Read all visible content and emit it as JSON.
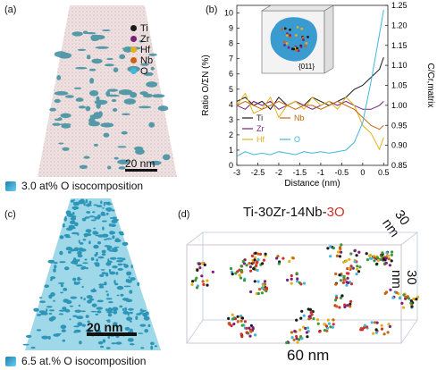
{
  "panels": {
    "a": {
      "label": "(a)",
      "legend": [
        {
          "symbol": "Ti",
          "color": "#1a1a1a"
        },
        {
          "symbol": "Zr",
          "color": "#7a1f7a"
        },
        {
          "symbol": "Hf",
          "color": "#e3b21b"
        },
        {
          "symbol": "Nb",
          "color": "#c8640f"
        },
        {
          "symbol": "O",
          "color": "#3fb7de"
        }
      ],
      "scalebar": "20 nm",
      "iso_caption": "3.0 at% O isocomposition"
    },
    "b": {
      "label": "(b)",
      "inset_label": "{011}"
    },
    "c": {
      "label": "(c)",
      "scalebar": "20 nm",
      "iso_caption": "6.5 at.% O isocomposition"
    },
    "d": {
      "label": "(d)",
      "title_prefix": "Ti-30Zr-14Nb-",
      "title_highlight": "3O",
      "dim_top": "30 nm",
      "dim_right": "30 nm",
      "dim_bottom": "60 nm"
    }
  },
  "chart_data": {
    "type": "line",
    "xlabel": "Distance (nm)",
    "ylabel_left": "Ratio O/ΣN (%)",
    "ylabel_right": "C/Cr,matrix",
    "xlim": [
      -3,
      0.6
    ],
    "ylim_left": [
      0,
      10.5
    ],
    "ylim_right": [
      0.85,
      1.25
    ],
    "xticks": [
      "-3",
      "-2.5",
      "-2",
      "-1.5",
      "-1",
      "-0.5",
      "0",
      "0.5"
    ],
    "yticks_left": [
      "0",
      "1",
      "2",
      "3",
      "4",
      "5",
      "6",
      "7",
      "8",
      "9",
      "10"
    ],
    "yticks_right": [
      "0.85",
      "0.90",
      "0.95",
      "1.00",
      "1.05",
      "1.10",
      "1.15",
      "1.20",
      "1.25"
    ],
    "x": [
      -3.0,
      -2.8,
      -2.6,
      -2.4,
      -2.2,
      -2.0,
      -1.8,
      -1.6,
      -1.4,
      -1.2,
      -1.0,
      -0.8,
      -0.6,
      -0.4,
      -0.2,
      0.0,
      0.2,
      0.4,
      0.5
    ],
    "series": [
      {
        "name": "Ti",
        "color": "#1a1a1a",
        "axis": "right",
        "values": [
          1.01,
          1.02,
          1.0,
          1.01,
          0.99,
          1.02,
          1.0,
          1.01,
          1.0,
          1.02,
          1.01,
          1.0,
          1.01,
          1.02,
          1.04,
          1.05,
          1.07,
          1.09,
          1.12
        ]
      },
      {
        "name": "Zr",
        "color": "#7a1f7a",
        "axis": "right",
        "values": [
          1.0,
          0.99,
          1.01,
          1.0,
          1.01,
          0.99,
          1.0,
          1.01,
          1.0,
          0.99,
          1.0,
          1.01,
          1.0,
          1.01,
          1.0,
          0.99,
          0.99,
          1.0,
          1.01
        ]
      },
      {
        "name": "Hf",
        "color": "#e3b21b",
        "axis": "right",
        "values": [
          1.0,
          1.03,
          0.98,
          0.99,
          1.02,
          0.97,
          1.0,
          1.01,
          0.99,
          1.02,
          1.0,
          1.01,
          0.99,
          1.02,
          1.0,
          0.95,
          0.93,
          0.89,
          0.92
        ]
      },
      {
        "name": "Nb",
        "color": "#c8640f",
        "axis": "right",
        "values": [
          1.0,
          1.01,
          1.0,
          0.99,
          1.0,
          1.01,
          1.0,
          0.99,
          1.0,
          1.0,
          0.99,
          1.0,
          1.01,
          1.0,
          0.99,
          0.97,
          0.95,
          0.94,
          0.95
        ]
      },
      {
        "name": "O",
        "color": "#3fb7de",
        "axis": "left",
        "values": [
          0.6,
          0.9,
          0.7,
          0.8,
          0.7,
          0.9,
          0.8,
          0.7,
          0.9,
          0.8,
          0.9,
          0.8,
          0.9,
          1.0,
          1.5,
          2.8,
          5.5,
          8.6,
          10.2
        ]
      }
    ]
  }
}
